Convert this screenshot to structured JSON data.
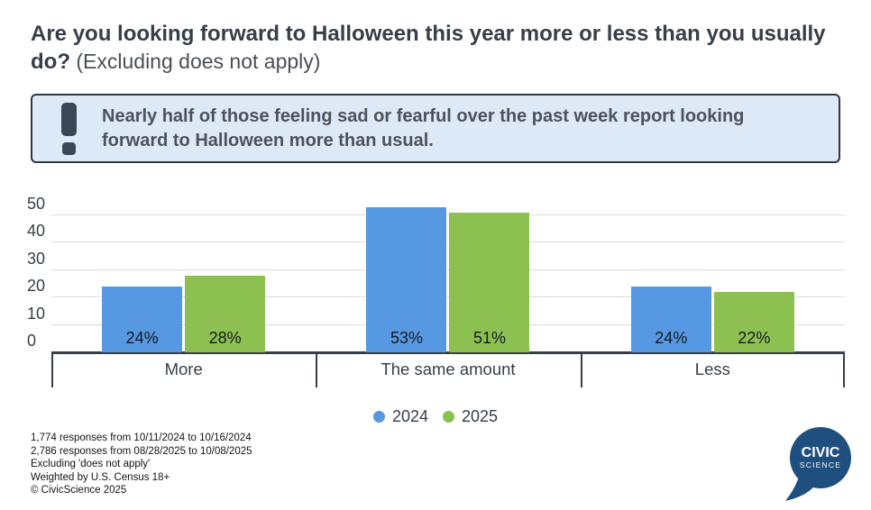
{
  "title": {
    "main": "Are you looking forward to Halloween this year more or less than you usually do?",
    "suffix": " (Excluding does not apply)"
  },
  "callout": {
    "icon": "exclamation-icon",
    "text": "Nearly half of those feeling sad or fearful over the past week report looking forward to Halloween more than usual."
  },
  "chart_data": {
    "type": "bar",
    "title": "Are you looking forward to Halloween this year more or less than you usually do? (Excluding does not apply)",
    "categories": [
      "More",
      "The same amount",
      "Less"
    ],
    "series": [
      {
        "name": "2024",
        "color": "#5798E2",
        "values": [
          24,
          53,
          24
        ],
        "labels": [
          "24%",
          "53%",
          "24%"
        ]
      },
      {
        "name": "2025",
        "color": "#8CC152",
        "values": [
          28,
          51,
          22
        ],
        "labels": [
          "28%",
          "51%",
          "22%"
        ]
      }
    ],
    "yticks": [
      0,
      10,
      20,
      30,
      40,
      50
    ],
    "ylim": [
      0,
      55
    ],
    "xlabel": "",
    "ylabel": "",
    "grid": true,
    "legend_position": "bottom"
  },
  "legend": {
    "items": [
      {
        "label": "2024",
        "color": "#5798E2"
      },
      {
        "label": "2025",
        "color": "#8CC152"
      }
    ]
  },
  "footer": {
    "lines": [
      "1,774 responses from 10/11/2024 to 10/16/2024",
      "2,786 responses from 08/28/2025 to 10/08/2025",
      "Excluding 'does not apply'",
      "Weighted by U.S. Census 18+",
      "© CivicScience 2025"
    ]
  },
  "logo": {
    "line1": "CIVIC",
    "line2": "SCIENCE",
    "color": "#1F4F7F"
  },
  "colors": {
    "bar_2024": "#5798E2",
    "bar_2025": "#8CC152",
    "callout_bg": "#DDE9F7",
    "callout_border": "#2D3843",
    "text_dark": "#373E47",
    "gridline": "#DBDCE0",
    "logo_navy": "#1F4F7F"
  }
}
